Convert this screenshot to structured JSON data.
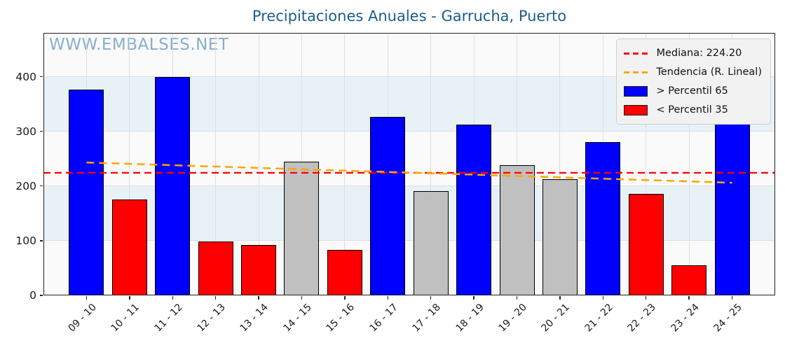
{
  "title": "Precipitaciones Anuales - Garrucha, Puerto",
  "watermark": "WWW.EMBALSES.NET",
  "legend": {
    "median_label": "Mediana: 224.20",
    "trend_label": "Tendencia (R. Lineal)",
    "above_label": "> Percentil 65",
    "below_label": "< Percentil 35"
  },
  "colors": {
    "title": "#1b5e8a",
    "watermark": "#74a3c2",
    "above_p65": "#0000ff",
    "below_p35": "#ff0000",
    "mid": "#c0c0c0",
    "bar_edge": "#000000",
    "median_line": "#ff0000",
    "trend_line": "#ffa500",
    "band": "#e8f1f6",
    "plot_bg": "#fafafa",
    "grid": "#dcdfe2",
    "legend_bg": "#f2f2f2",
    "legend_border": "#cfcfcf"
  },
  "chart_data": {
    "type": "bar",
    "title": "Precipitaciones Anuales - Garrucha, Puerto",
    "xlabel": "",
    "ylabel": "",
    "categories": [
      "09 - 10",
      "10 - 11",
      "11 - 12",
      "12 - 13",
      "13 - 14",
      "14 - 15",
      "15 - 16",
      "16 - 17",
      "17 - 18",
      "18 - 19",
      "19 - 20",
      "20 - 21",
      "21 - 22",
      "22 - 23",
      "23 - 24",
      "24 - 25"
    ],
    "values": [
      376,
      175,
      399,
      99,
      92,
      245,
      83,
      327,
      191,
      312,
      238,
      212,
      280,
      185,
      55,
      323
    ],
    "bar_classes": [
      "above_p65",
      "below_p35",
      "above_p65",
      "below_p35",
      "below_p35",
      "mid",
      "below_p35",
      "above_p65",
      "mid",
      "above_p65",
      "mid",
      "mid",
      "above_p65",
      "below_p35",
      "below_p35",
      "above_p65"
    ],
    "median": 224.2,
    "trend": {
      "start": 243,
      "end": 206
    },
    "ylim": [
      0,
      480
    ],
    "yticks": [
      0,
      100,
      200,
      300,
      400
    ],
    "bands": [
      [
        100,
        200
      ],
      [
        300,
        400
      ]
    ],
    "grid": true,
    "legend_position": "upper right"
  }
}
